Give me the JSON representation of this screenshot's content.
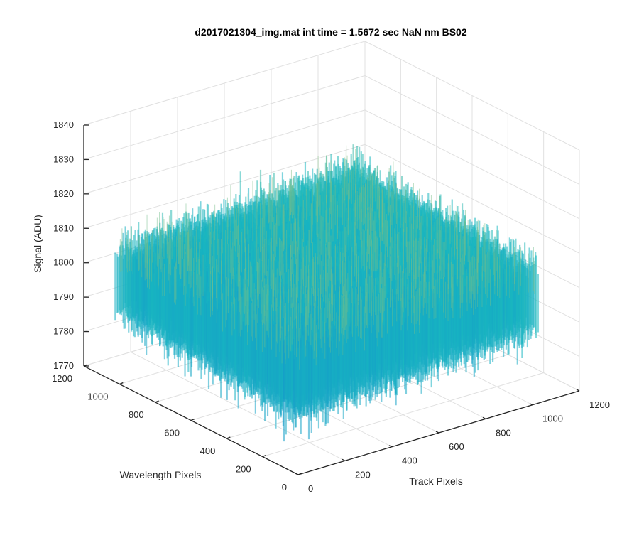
{
  "chart_data": {
    "type": "surface",
    "title": "d2017021304_img.mat int time = 1.5672 sec  NaN nm BS02",
    "xlabel": "Track Pixels",
    "ylabel": "Wavelength Pixels",
    "zlabel": "Signal (ADU)",
    "xlim": [
      0,
      1200
    ],
    "ylim": [
      0,
      1200
    ],
    "zlim": [
      1770,
      1840
    ],
    "xticks": [
      "0",
      "200",
      "400",
      "600",
      "800",
      "1000",
      "1200"
    ],
    "yticks": [
      "0",
      "200",
      "400",
      "600",
      "800",
      "1000",
      "1200"
    ],
    "zticks": [
      "1770",
      "1780",
      "1790",
      "1800",
      "1810",
      "1820",
      "1830",
      "1840"
    ],
    "grid": true,
    "colormap": "parula",
    "surface_extent": {
      "x": [
        0,
        1024
      ],
      "y": [
        0,
        1024
      ]
    },
    "signal_stats": {
      "mean": 1798,
      "min": 1772,
      "max": 1832
    }
  },
  "colors": {
    "low": "#0f72d6",
    "mid": "#19b8c0",
    "high": "#e0c44a",
    "axis": "#262626",
    "grid": "#e0e0e0"
  }
}
